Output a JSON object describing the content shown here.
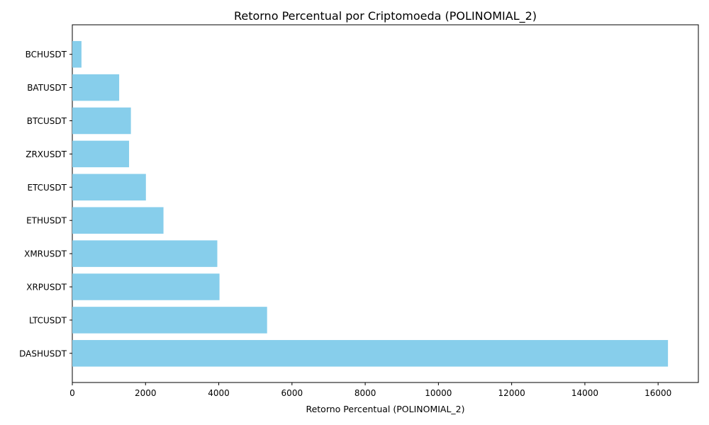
{
  "chart_data": {
    "type": "bar",
    "orientation": "horizontal",
    "title": "Retorno Percentual por Criptomoeda (POLINOMIAL_2)",
    "xlabel": "Retorno Percentual (POLINOMIAL_2)",
    "ylabel": "",
    "categories": [
      "DASHUSDT",
      "LTCUSDT",
      "XRPUSDT",
      "XMRUSDT",
      "ETHUSDT",
      "ETCUSDT",
      "ZRXUSDT",
      "BTCUSDT",
      "BATUSDT",
      "BCHUSDT"
    ],
    "values": [
      16270,
      5320,
      4020,
      3960,
      2490,
      2010,
      1550,
      1600,
      1280,
      250
    ],
    "xlim": [
      0,
      17100
    ],
    "xticks": [
      0,
      2000,
      4000,
      6000,
      8000,
      10000,
      12000,
      14000,
      16000
    ],
    "grid": false,
    "bar_color": "#87CEEB"
  }
}
